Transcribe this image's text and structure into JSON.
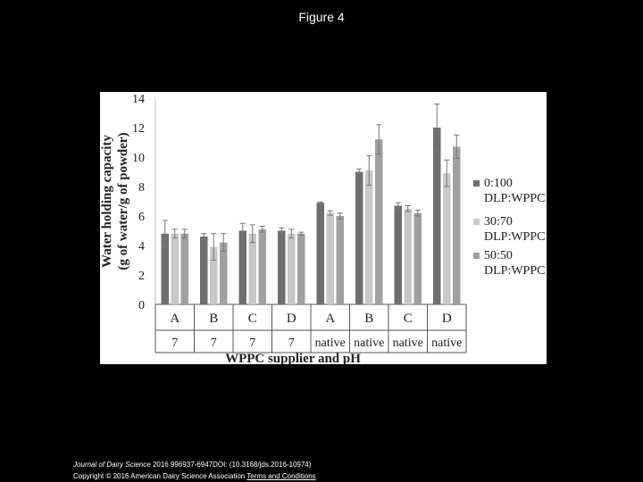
{
  "slide": {
    "title": "Figure 4",
    "citation_journal": "Journal of Dairy Science",
    "citation_rest": "2016 996937-6947DOI: (10.3168/jds.2016-10974)",
    "copyright": "Copyright © 2016 American Dairy Science Association",
    "link": "Terms and Conditions"
  },
  "chart_data": {
    "type": "bar",
    "ylabel": [
      "Water holding capacity",
      "(g of water/g of powder)"
    ],
    "xlabel": "WPPC supplier and pH",
    "categories": [
      "A",
      "B",
      "C",
      "D",
      "A",
      "B",
      "C",
      "D"
    ],
    "ph": [
      "7",
      "7",
      "7",
      "7",
      "native",
      "native",
      "native",
      "native"
    ],
    "series": [
      {
        "name": "0:100 DLP:WPPC",
        "color": "#6e6e6e",
        "values": [
          4.8,
          4.6,
          5.0,
          5.0,
          6.9,
          9.0,
          6.7,
          12.0
        ],
        "errors": [
          0.9,
          0.2,
          0.5,
          0.2,
          0.05,
          0.2,
          0.2,
          1.6
        ]
      },
      {
        "name": "30:70 DLP:WPPC",
        "color": "#c8c8c8",
        "values": [
          4.8,
          3.9,
          4.8,
          4.8,
          6.2,
          9.1,
          6.5,
          8.9
        ],
        "errors": [
          0.3,
          0.9,
          0.6,
          0.3,
          0.15,
          1.0,
          0.2,
          0.9
        ]
      },
      {
        "name": "50:50 DLP:WPPC",
        "color": "#a0a0a0",
        "values": [
          4.8,
          4.2,
          5.1,
          4.8,
          6.0,
          11.2,
          6.2,
          10.7
        ],
        "errors": [
          0.3,
          0.6,
          0.2,
          0.1,
          0.2,
          1.0,
          0.2,
          0.8
        ]
      }
    ],
    "ylim": [
      0,
      14
    ],
    "yticks": [
      0,
      2,
      4,
      6,
      8,
      10,
      12,
      14
    ],
    "grid": false
  }
}
